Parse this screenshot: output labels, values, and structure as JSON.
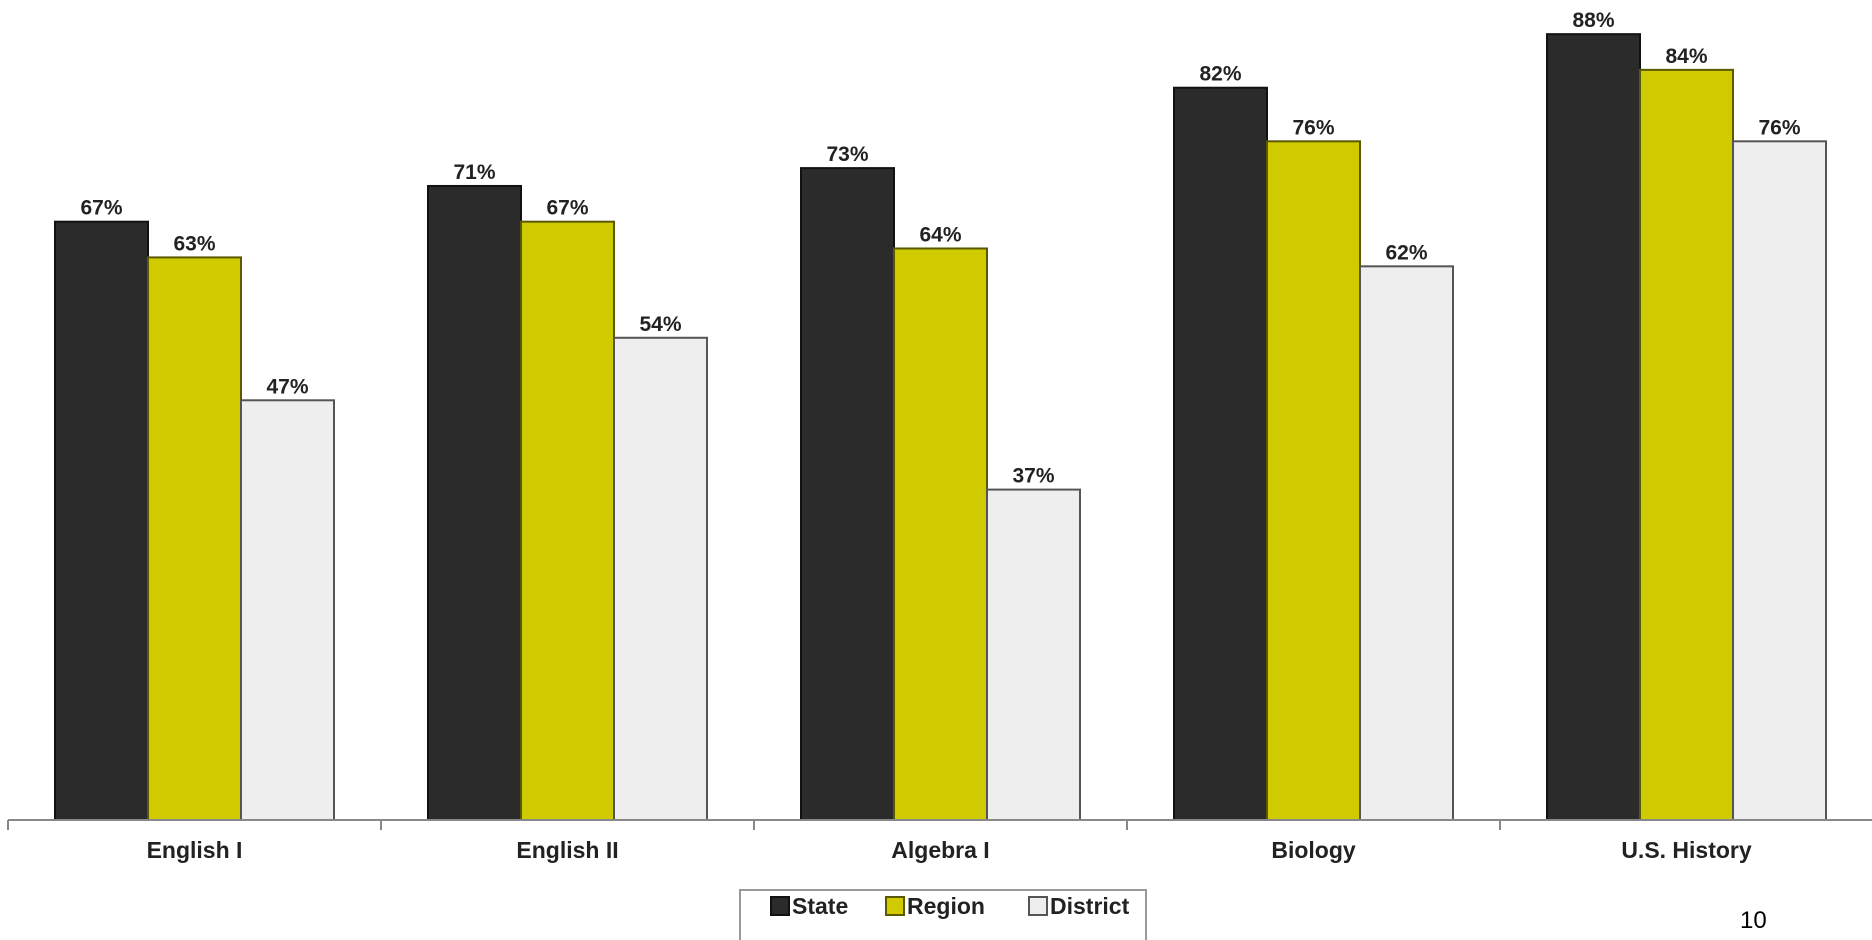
{
  "chart_data": {
    "type": "bar",
    "title": "",
    "xlabel": "",
    "ylabel": "",
    "ylim": [
      0,
      100
    ],
    "grid": false,
    "legend_position": "bottom",
    "value_format": "percent",
    "categories": [
      "English I",
      "English II",
      "Algebra I",
      "Biology",
      "U.S. History"
    ],
    "series": [
      {
        "name": "State",
        "color": "#2b2b2b",
        "values": [
          67,
          71,
          73,
          82,
          88
        ]
      },
      {
        "name": "Region",
        "color": "#cfcb00",
        "values": [
          63,
          67,
          64,
          76,
          84
        ]
      },
      {
        "name": "District",
        "color": "#eeeeee",
        "values": [
          47,
          54,
          37,
          62,
          76
        ]
      }
    ]
  },
  "page": {
    "number": "10"
  }
}
